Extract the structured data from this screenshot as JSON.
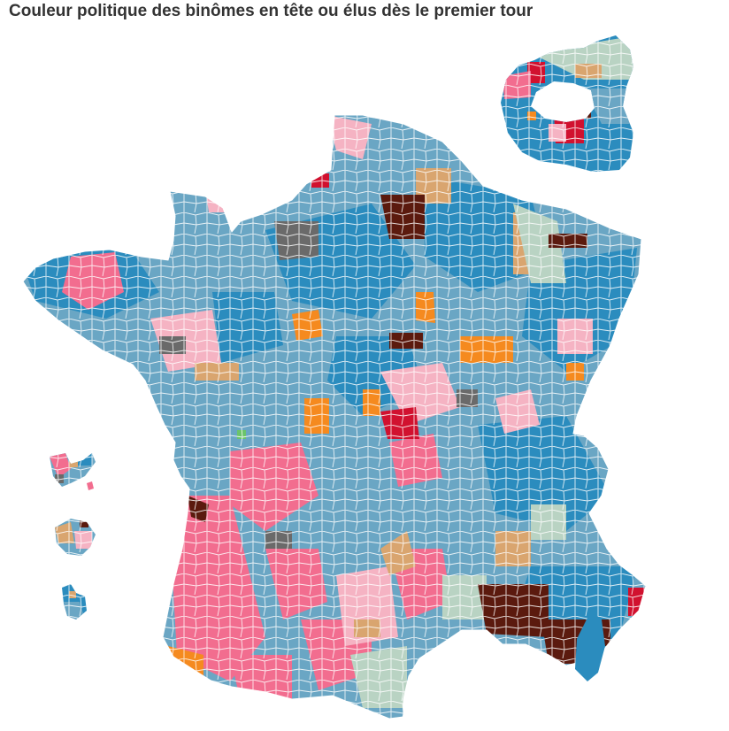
{
  "title": "Couleur politique des binômes en tête ou élus dès le premier tour",
  "palette": {
    "blue": "#2b8cbe",
    "blue_gray": "#6aa6c4",
    "pink_hot": "#f26d8f",
    "pink_light": "#f5b3c3",
    "tan": "#d9a56f",
    "orange": "#f58a1f",
    "dark_brown": "#5b1a0e",
    "red": "#d1112f",
    "gray": "#6a6a6a",
    "sage": "#b9d3c3",
    "green": "#6bc46a",
    "borders": "#ffffff"
  },
  "regions": [
    "mainland-france",
    "paris-inset",
    "guadeloupe",
    "martinique",
    "la-reunion",
    "mayotte"
  ]
}
